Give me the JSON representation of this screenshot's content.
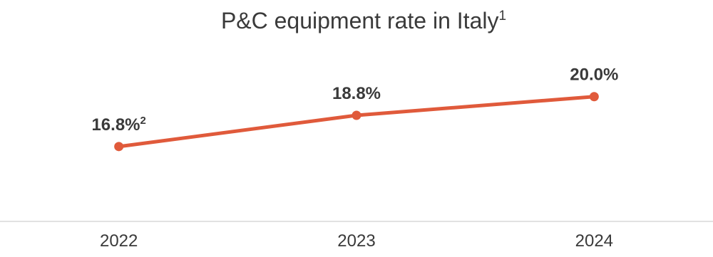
{
  "chart_data": {
    "type": "line",
    "title": "P&C equipment rate in Italy",
    "title_footnote": "1",
    "categories": [
      "2022",
      "2023",
      "2024"
    ],
    "series": [
      {
        "values": [
          16.8,
          18.8,
          20.0
        ],
        "labels": [
          "16.8%",
          "18.8%",
          "20.0%"
        ],
        "label_footnotes": [
          "2",
          "",
          ""
        ],
        "color": "#e05a3b"
      }
    ],
    "ylim": [
      12,
      23
    ],
    "grid": false,
    "legend": "none",
    "axis_color": "#d9d9d9"
  }
}
